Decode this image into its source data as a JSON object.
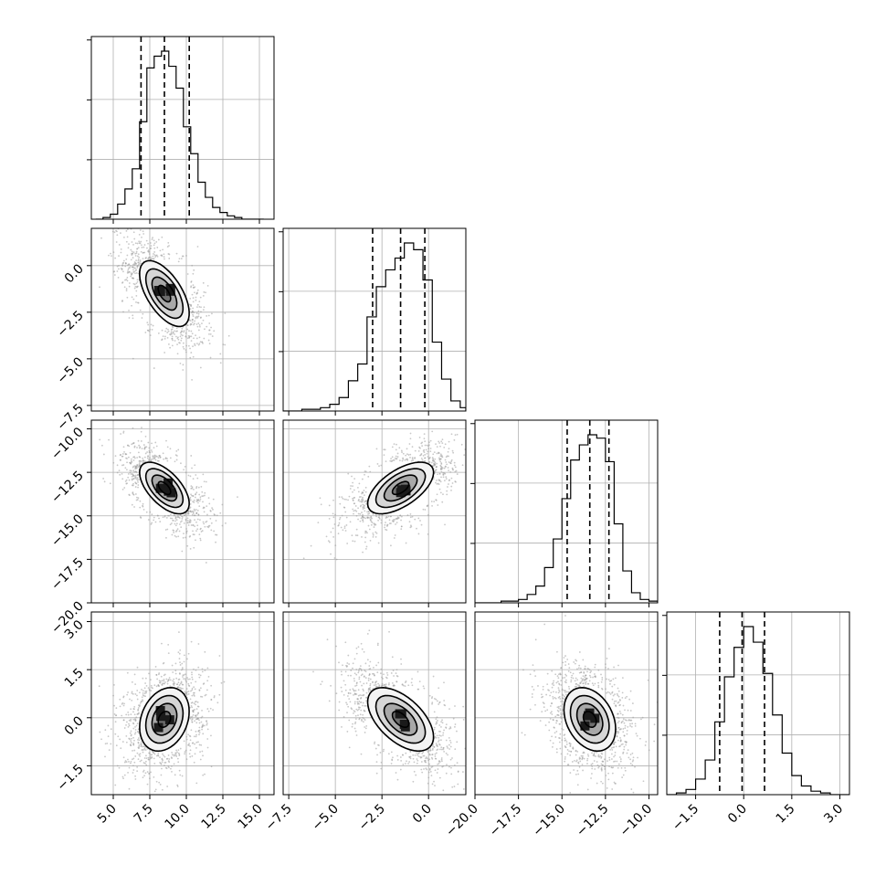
{
  "chart_data": {
    "type": "corner",
    "parameters": [
      {
        "range": [
          3.5,
          16.0
        ],
        "ticks": [
          5.0,
          7.5,
          10.0,
          12.5,
          15.0
        ],
        "tick_labels": [
          "5.0",
          "7.5",
          "10.0",
          "12.5",
          "15.0"
        ],
        "quantiles": [
          6.9,
          8.5,
          10.2
        ],
        "mean": 8.5,
        "std": 1.2,
        "hist_bins": [
          3.8,
          4.3,
          4.8,
          5.3,
          5.8,
          6.3,
          6.8,
          7.3,
          7.8,
          8.3,
          8.8,
          9.3,
          9.8,
          10.3,
          10.8,
          11.3,
          11.8,
          12.3,
          12.8,
          13.3,
          13.8,
          14.3,
          14.8,
          15.3
        ],
        "hist_counts": [
          0,
          1,
          3,
          9,
          18,
          30,
          58,
          90,
          97,
          100,
          91,
          78,
          55,
          39,
          22,
          13,
          7,
          4,
          2,
          1,
          0,
          0,
          0
        ]
      },
      {
        "range": [
          -7.8,
          2.0
        ],
        "ticks": [
          -7.5,
          -5.0,
          -2.5,
          0.0
        ],
        "tick_labels": [
          "−7.5",
          "−5.0",
          "−2.5",
          "0.0"
        ],
        "quantiles": [
          -3.0,
          -1.5,
          -0.2
        ],
        "mean": -1.5,
        "std": 1.25,
        "hist_bins": [
          -7.8,
          -7.3,
          -6.8,
          -6.3,
          -5.8,
          -5.3,
          -4.8,
          -4.3,
          -3.8,
          -3.3,
          -2.8,
          -2.3,
          -1.8,
          -1.3,
          -0.8,
          -0.3,
          0.2,
          0.7,
          1.2,
          1.7,
          2.0
        ],
        "hist_counts": [
          0,
          0,
          1,
          1,
          2,
          4,
          8,
          18,
          28,
          56,
          74,
          84,
          91,
          100,
          96,
          78,
          41,
          19,
          6,
          2
        ]
      },
      {
        "range": [
          -20.0,
          -9.5
        ],
        "ticks": [
          -20.0,
          -17.5,
          -15.0,
          -12.5,
          -10.0
        ],
        "tick_labels": [
          "−20.0",
          "−17.5",
          "−15.0",
          "−12.5",
          "−10.0"
        ],
        "quantiles": [
          -14.7,
          -13.4,
          -12.3
        ],
        "mean": -13.4,
        "std": 1.05,
        "hist_bins": [
          -20.0,
          -19.5,
          -19.0,
          -18.5,
          -18.0,
          -17.5,
          -17.0,
          -16.5,
          -16.0,
          -15.5,
          -15.0,
          -14.5,
          -14.0,
          -13.5,
          -13.0,
          -12.5,
          -12.0,
          -11.5,
          -11.0,
          -10.5,
          -10.0,
          -9.5
        ],
        "hist_counts": [
          0,
          0,
          0,
          1,
          1,
          2,
          5,
          10,
          21,
          38,
          62,
          85,
          94,
          100,
          98,
          84,
          47,
          19,
          6,
          2,
          1
        ]
      },
      {
        "range": [
          -2.4,
          3.3
        ],
        "ticks": [
          -1.5,
          0.0,
          1.5,
          3.0
        ],
        "tick_labels": [
          "−1.5",
          "0.0",
          "1.5",
          "3.0"
        ],
        "quantiles": [
          -0.75,
          -0.05,
          0.65
        ],
        "mean": -0.05,
        "std": 0.7,
        "hist_bins": [
          -2.4,
          -2.1,
          -1.8,
          -1.5,
          -1.2,
          -0.9,
          -0.6,
          -0.3,
          0.0,
          0.3,
          0.6,
          0.9,
          1.2,
          1.5,
          1.8,
          2.1,
          2.4,
          2.7,
          3.0,
          3.3
        ],
        "hist_counts": [
          0,
          1,
          3,
          9,
          20,
          42,
          68,
          85,
          97,
          88,
          70,
          46,
          24,
          11,
          5,
          2,
          1,
          0,
          0
        ]
      }
    ],
    "correlations": [
      {
        "pair": [
          0,
          1
        ],
        "rho": -0.6
      },
      {
        "pair": [
          0,
          2
        ],
        "rho": -0.6
      },
      {
        "pair": [
          1,
          2
        ],
        "rho": 0.6
      },
      {
        "pair": [
          0,
          3
        ],
        "rho": 0.25
      },
      {
        "pair": [
          1,
          3
        ],
        "rho": -0.55
      },
      {
        "pair": [
          2,
          3
        ],
        "rho": -0.3
      }
    ],
    "contour_levels_sigma": [
      0.5,
      1.0,
      1.5,
      2.0
    ],
    "grid": true,
    "colors": {
      "points": "#9a9a9a",
      "density": "#000000",
      "lines": "#000000",
      "grid": "#b0b0b0"
    }
  }
}
